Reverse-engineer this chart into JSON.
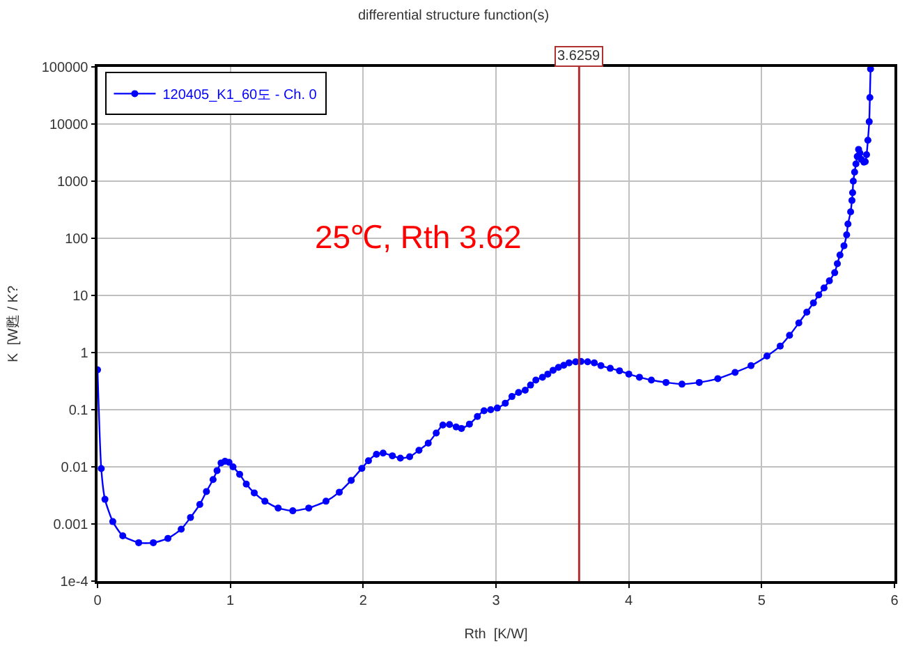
{
  "chart_data": {
    "type": "line",
    "title": "differential structure function(s)",
    "xlabel": "Rth  [K/W]",
    "ylabel": "K  [W甦 / K?",
    "x": [
      0,
      0.028,
      0.056,
      0.115,
      0.19,
      0.31,
      0.42,
      0.53,
      0.63,
      0.7,
      0.77,
      0.82,
      0.87,
      0.9,
      0.93,
      0.96,
      0.99,
      1.02,
      1.07,
      1.12,
      1.18,
      1.26,
      1.36,
      1.47,
      1.59,
      1.72,
      1.82,
      1.91,
      1.99,
      2.04,
      2.1,
      2.15,
      2.22,
      2.28,
      2.35,
      2.42,
      2.49,
      2.55,
      2.6,
      2.65,
      2.7,
      2.74,
      2.8,
      2.86,
      2.91,
      2.96,
      3.01,
      3.07,
      3.12,
      3.17,
      3.22,
      3.26,
      3.3,
      3.35,
      3.39,
      3.43,
      3.47,
      3.51,
      3.55,
      3.6,
      3.64,
      3.69,
      3.74,
      3.79,
      3.86,
      3.93,
      4.0,
      4.08,
      4.17,
      4.28,
      4.4,
      4.53,
      4.67,
      4.8,
      4.92,
      5.04,
      5.14,
      5.21,
      5.28,
      5.34,
      5.39,
      5.43,
      5.47,
      5.51,
      5.55,
      5.57,
      5.59,
      5.62,
      5.64,
      5.65,
      5.67,
      5.68,
      5.685,
      5.69,
      5.7,
      5.71,
      5.72,
      5.73,
      5.74,
      5.75,
      5.77,
      5.78,
      5.79,
      5.8,
      5.81,
      5.815,
      5.82
    ],
    "series": [
      {
        "name": "120405_K1_60도 - Ch. 0",
        "color": "#0000ff",
        "values": [
          0.5,
          0.0093,
          0.0027,
          0.0011,
          0.00062,
          0.00047,
          0.00047,
          0.00056,
          0.00081,
          0.0013,
          0.0022,
          0.0037,
          0.006,
          0.0086,
          0.0117,
          0.0125,
          0.012,
          0.01,
          0.0074,
          0.005,
          0.0035,
          0.0025,
          0.0019,
          0.0017,
          0.0019,
          0.0025,
          0.0036,
          0.0058,
          0.0094,
          0.0128,
          0.0166,
          0.0174,
          0.0156,
          0.0142,
          0.015,
          0.0195,
          0.026,
          0.039,
          0.054,
          0.055,
          0.05,
          0.047,
          0.056,
          0.076,
          0.096,
          0.1,
          0.107,
          0.13,
          0.17,
          0.2,
          0.22,
          0.27,
          0.33,
          0.37,
          0.42,
          0.49,
          0.55,
          0.6,
          0.66,
          0.69,
          0.7,
          0.69,
          0.66,
          0.59,
          0.53,
          0.48,
          0.42,
          0.37,
          0.33,
          0.3,
          0.28,
          0.3,
          0.35,
          0.45,
          0.59,
          0.87,
          1.3,
          2.0,
          3.3,
          5.1,
          7.4,
          10.2,
          13.5,
          18,
          25,
          36,
          51,
          74,
          115,
          178,
          290,
          460,
          630,
          1000,
          1440,
          2000,
          2700,
          3600,
          3100,
          2400,
          2150,
          2200,
          2900,
          5200,
          11000,
          29000,
          92000
        ]
      }
    ],
    "xlim": [
      0,
      6
    ],
    "xticks": [
      0,
      1,
      2,
      3,
      4,
      5,
      6
    ],
    "log": "y",
    "ylim": [
      0.0001,
      100000
    ],
    "yticks": [
      {
        "value": 0.0001,
        "label": "1e-4"
      },
      0.001,
      0.01,
      0.1,
      1,
      10,
      100,
      1000,
      10000,
      100000
    ],
    "ref_lines": [
      {
        "axis": "x",
        "value": 3.6259,
        "label": "3.6259",
        "color": "#b03030"
      }
    ],
    "annotations": [
      "25℃, Rth 3.62"
    ],
    "grid": true,
    "legend": "top left",
    "marker": "circle",
    "line_style": "solid"
  }
}
